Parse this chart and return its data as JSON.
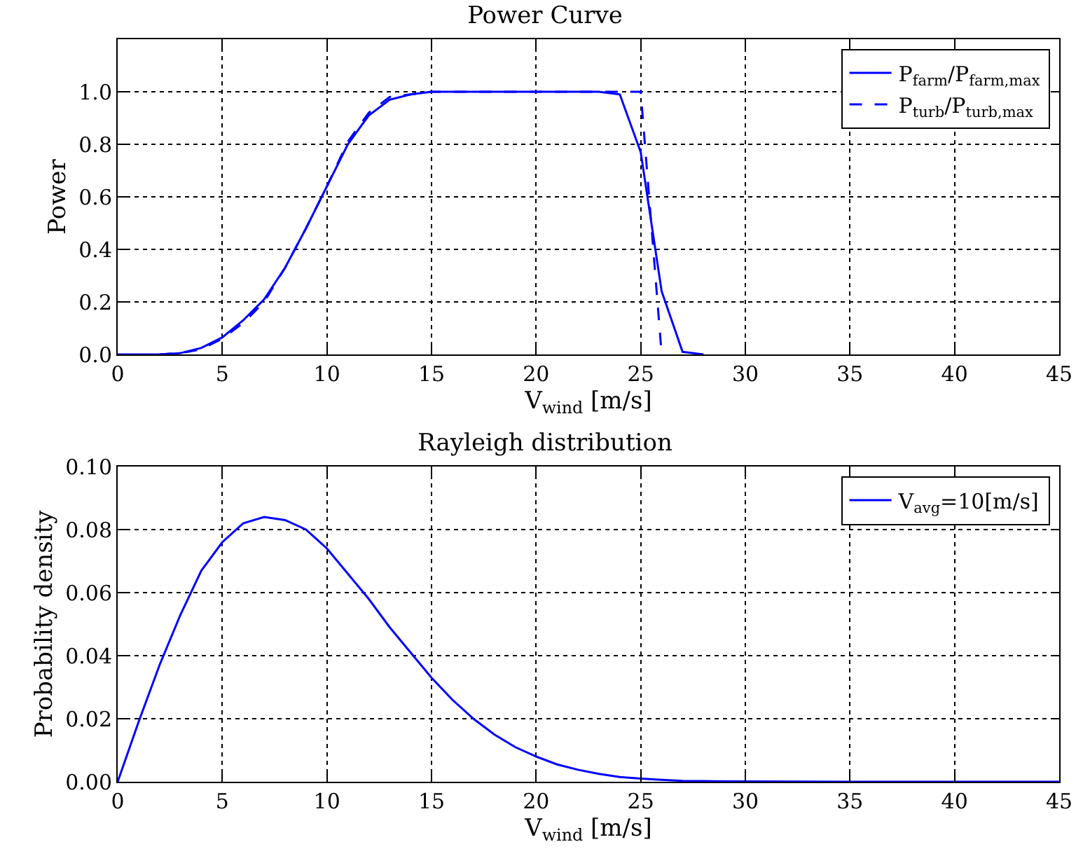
{
  "chart_data": [
    {
      "type": "line",
      "title": "Power Curve",
      "xlabel": "V$_{wind}$ [m/s]",
      "ylabel": "Power",
      "xlim": [
        0,
        45
      ],
      "xticks": [
        0,
        5,
        10,
        15,
        20,
        25,
        30,
        35,
        40,
        45
      ],
      "ylim": [
        0,
        1.2
      ],
      "yticks": [
        {
          "value": 0,
          "label": "0.0"
        },
        {
          "value": 0.2,
          "label": "0.2"
        },
        {
          "value": 0.4,
          "label": "0.4"
        },
        {
          "value": 0.6,
          "label": "0.6"
        },
        {
          "value": 0.8,
          "label": "0.8"
        },
        {
          "value": 1,
          "label": "1.0"
        }
      ],
      "grid": true,
      "legend": "top right",
      "marker": "none",
      "series": [
        {
          "name": "P$_{farm}$/P$_{farm,max}$",
          "color": "#0000ff",
          "line_style": "solid",
          "x": [
            0,
            1,
            2,
            3,
            4,
            5,
            6,
            7,
            8,
            9,
            10,
            11,
            12,
            13,
            14,
            15,
            16,
            17,
            18,
            19,
            20,
            21,
            22,
            23,
            24,
            25,
            26,
            27,
            28
          ],
          "values": [
            0,
            0,
            0,
            0.005,
            0.025,
            0.065,
            0.13,
            0.21,
            0.33,
            0.48,
            0.64,
            0.8,
            0.91,
            0.97,
            0.99,
            1,
            1,
            1,
            1,
            1,
            1,
            1,
            1,
            1,
            0.99,
            0.77,
            0.24,
            0.01,
            0
          ]
        },
        {
          "name": "P$_{turb}$/P$_{turb,max}$",
          "color": "#0000ff",
          "line_style": "dashed",
          "x": [
            2,
            3,
            4,
            5,
            6,
            7,
            8,
            9,
            10,
            11,
            12,
            13,
            14,
            15,
            16,
            17,
            18,
            19,
            20,
            21,
            22,
            23,
            24,
            25,
            26
          ],
          "values": [
            0,
            0.005,
            0.02,
            0.06,
            0.12,
            0.2,
            0.33,
            0.48,
            0.64,
            0.81,
            0.92,
            0.98,
            0.99,
            1,
            1,
            1,
            1,
            1,
            1,
            1,
            1,
            1,
            1,
            1,
            0
          ]
        }
      ]
    },
    {
      "type": "line",
      "title": "Rayleigh distribution",
      "xlabel": "V$_{wind}$ [m/s]",
      "ylabel": "Probability density",
      "xlim": [
        0,
        45
      ],
      "xticks": [
        0,
        5,
        10,
        15,
        20,
        25,
        30,
        35,
        40,
        45
      ],
      "ylim": [
        0,
        0.1
      ],
      "yticks": [
        {
          "value": 0,
          "label": "0.00"
        },
        {
          "value": 0.02,
          "label": "0.02"
        },
        {
          "value": 0.04,
          "label": "0.04"
        },
        {
          "value": 0.06,
          "label": "0.06"
        },
        {
          "value": 0.08,
          "label": "0.08"
        },
        {
          "value": 0.1,
          "label": "0.10"
        }
      ],
      "grid": true,
      "legend": "top right",
      "marker": "none",
      "series": [
        {
          "name": "V$_{avg}$=10[m/s]",
          "color": "#0000ff",
          "line_style": "solid",
          "x": [
            0,
            1,
            2,
            3,
            4,
            5,
            6,
            7,
            8,
            9,
            10,
            11,
            12,
            13,
            14,
            15,
            16,
            17,
            18,
            19,
            20,
            21,
            22,
            23,
            24,
            25,
            26,
            27,
            28,
            30,
            35,
            40,
            45
          ],
          "values": [
            0,
            0.019,
            0.037,
            0.053,
            0.067,
            0.076,
            0.082,
            0.084,
            0.083,
            0.08,
            0.074,
            0.066,
            0.058,
            0.049,
            0.041,
            0.033,
            0.026,
            0.02,
            0.015,
            0.011,
            0.008,
            0.0055,
            0.0038,
            0.0025,
            0.0015,
            0.001,
            0.0006,
            0.0003,
            0.0002,
            0.0001,
            0,
            0,
            0
          ]
        }
      ]
    }
  ]
}
